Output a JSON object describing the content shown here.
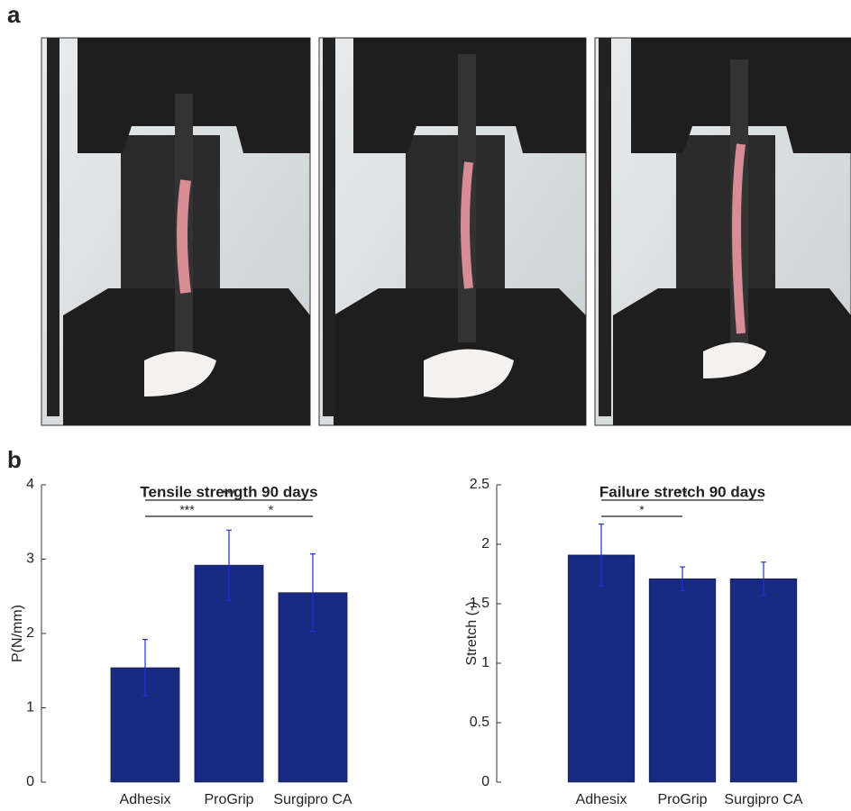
{
  "panel_labels": [
    "a",
    "b"
  ],
  "chart_data": [
    {
      "type": "bar",
      "title": "Tensile strength 90 days",
      "y_label": "P(N/mm)",
      "categories": [
        "Adhesix",
        "ProGrip",
        "Surgipro CA"
      ],
      "values": [
        1.54,
        2.92,
        2.55
      ],
      "errors": [
        0.38,
        0.47,
        0.52
      ],
      "color": "#172983",
      "error_color": "#2030d0",
      "ylim": [
        0,
        4
      ],
      "yticks": [
        0,
        1,
        2,
        3,
        4
      ],
      "annotations": [
        {
          "from": 0,
          "to": 2,
          "label": "***"
        },
        {
          "from": 0,
          "to": 1,
          "label": "***"
        },
        {
          "from": 1,
          "to": 2,
          "label": "*"
        }
      ]
    },
    {
      "type": "bar",
      "title": "Failure stretch  90 days",
      "y_label": "Stretch (-)",
      "categories": [
        "Adhesix",
        "ProGrip",
        "Surgipro CA"
      ],
      "values": [
        1.91,
        1.71,
        1.71
      ],
      "errors": [
        0.26,
        0.1,
        0.14
      ],
      "color": "#172983",
      "error_color": "#2030d0",
      "ylim": [
        0,
        2.5
      ],
      "yticks": [
        0,
        0.5,
        1,
        1.5,
        2,
        2.5
      ],
      "annotations": [
        {
          "from": 0,
          "to": 2,
          "label": "**"
        },
        {
          "from": 0,
          "to": 1,
          "label": "*"
        }
      ]
    }
  ]
}
